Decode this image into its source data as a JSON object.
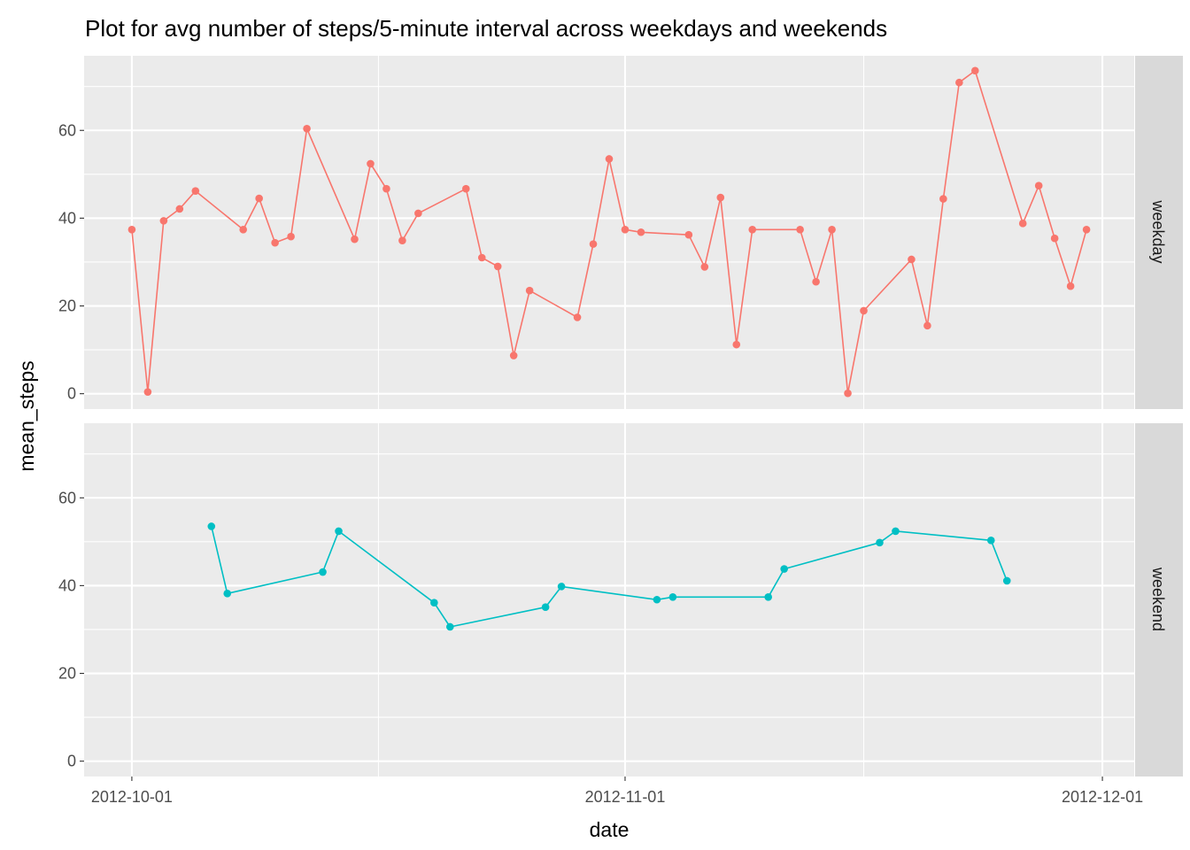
{
  "chart_data": {
    "type": "line",
    "title": "Plot for avg number of steps/5-minute interval across weekdays and weekends",
    "xlabel": "date",
    "ylabel": "mean_steps",
    "x_ticks": [
      "2012-10-01",
      "2012-11-01",
      "2012-12-01"
    ],
    "x_range": [
      "2012-09-28",
      "2012-12-03"
    ],
    "ylim": [
      -3.5,
      77
    ],
    "y_ticks": [
      0,
      20,
      40,
      60
    ],
    "grid": true,
    "legend": "none",
    "facets": [
      "weekday",
      "weekend"
    ],
    "series": [
      {
        "facet": "weekday",
        "color": "#F8766D",
        "points": [
          [
            "2012-10-01",
            37.4
          ],
          [
            "2012-10-02",
            0.4
          ],
          [
            "2012-10-03",
            39.4
          ],
          [
            "2012-10-04",
            42.1
          ],
          [
            "2012-10-05",
            46.2
          ],
          [
            "2012-10-08",
            37.4
          ],
          [
            "2012-10-09",
            44.5
          ],
          [
            "2012-10-10",
            34.4
          ],
          [
            "2012-10-11",
            35.8
          ],
          [
            "2012-10-12",
            60.4
          ],
          [
            "2012-10-15",
            35.2
          ],
          [
            "2012-10-16",
            52.4
          ],
          [
            "2012-10-17",
            46.7
          ],
          [
            "2012-10-18",
            34.9
          ],
          [
            "2012-10-19",
            41.1
          ],
          [
            "2012-10-22",
            46.7
          ],
          [
            "2012-10-23",
            31.0
          ],
          [
            "2012-10-24",
            29.0
          ],
          [
            "2012-10-25",
            8.7
          ],
          [
            "2012-10-26",
            23.5
          ],
          [
            "2012-10-29",
            17.4
          ],
          [
            "2012-10-30",
            34.1
          ],
          [
            "2012-10-31",
            53.5
          ],
          [
            "2012-11-01",
            37.4
          ],
          [
            "2012-11-02",
            36.8
          ],
          [
            "2012-11-05",
            36.2
          ],
          [
            "2012-11-06",
            28.9
          ],
          [
            "2012-11-07",
            44.7
          ],
          [
            "2012-11-08",
            11.2
          ],
          [
            "2012-11-09",
            37.4
          ],
          [
            "2012-11-12",
            37.4
          ],
          [
            "2012-11-13",
            25.5
          ],
          [
            "2012-11-14",
            37.4
          ],
          [
            "2012-11-15",
            0.1
          ],
          [
            "2012-11-16",
            18.9
          ],
          [
            "2012-11-19",
            30.6
          ],
          [
            "2012-11-20",
            15.5
          ],
          [
            "2012-11-21",
            44.4
          ],
          [
            "2012-11-22",
            70.9
          ],
          [
            "2012-11-23",
            73.6
          ],
          [
            "2012-11-26",
            38.8
          ],
          [
            "2012-11-27",
            47.4
          ],
          [
            "2012-11-28",
            35.4
          ],
          [
            "2012-11-29",
            24.5
          ],
          [
            "2012-11-30",
            37.4
          ]
        ]
      },
      {
        "facet": "weekend",
        "color": "#00BFC4",
        "points": [
          [
            "2012-10-06",
            53.5
          ],
          [
            "2012-10-07",
            38.2
          ],
          [
            "2012-10-13",
            43.1
          ],
          [
            "2012-10-14",
            52.4
          ],
          [
            "2012-10-20",
            36.1
          ],
          [
            "2012-10-21",
            30.6
          ],
          [
            "2012-10-27",
            35.1
          ],
          [
            "2012-10-28",
            39.8
          ],
          [
            "2012-11-03",
            36.8
          ],
          [
            "2012-11-04",
            37.4
          ],
          [
            "2012-11-10",
            37.4
          ],
          [
            "2012-11-11",
            43.8
          ],
          [
            "2012-11-17",
            49.8
          ],
          [
            "2012-11-18",
            52.4
          ],
          [
            "2012-11-24",
            50.3
          ],
          [
            "2012-11-25",
            41.1
          ]
        ]
      }
    ]
  }
}
